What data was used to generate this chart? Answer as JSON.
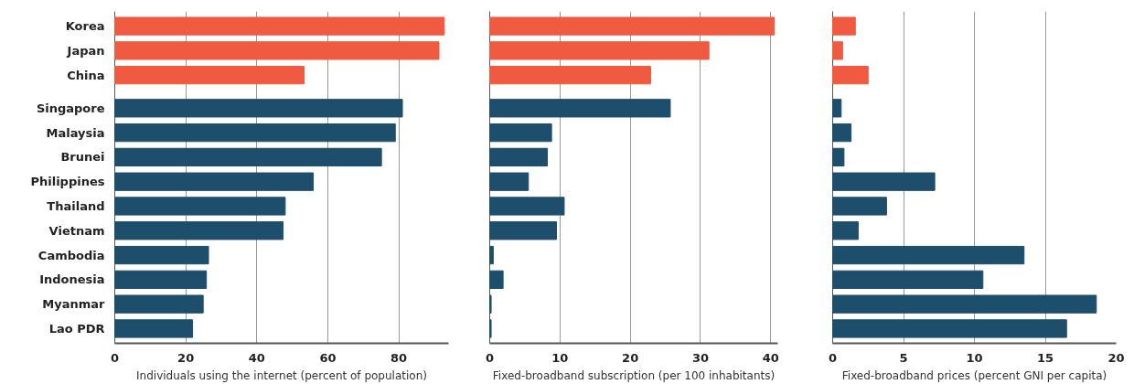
{
  "chart_data": [
    {
      "type": "bar",
      "orientation": "horizontal",
      "categories": [
        "Korea",
        "Japan",
        "China",
        "Singapore",
        "Malaysia",
        "Brunei",
        "Philippines",
        "Thailand",
        "Vietnam",
        "Cambodia",
        "Indonesia",
        "Myanmar",
        "Lao PDR"
      ],
      "values": [
        92.8,
        91.3,
        53.3,
        81,
        79,
        75.1,
        55.9,
        48,
        47.4,
        26.4,
        25.8,
        24.9,
        21.9
      ],
      "colors": [
        "#f05a40",
        "#f05a40",
        "#f05a40",
        "#1d4e6b",
        "#1d4e6b",
        "#1d4e6b",
        "#1d4e6b",
        "#1d4e6b",
        "#1d4e6b",
        "#1d4e6b",
        "#1d4e6b",
        "#1d4e6b",
        "#1d4e6b"
      ],
      "xlabel": "Individuals using the internet (percent of population)",
      "xlim": [
        0,
        94
      ],
      "xticks": [
        0,
        20,
        40,
        60,
        80
      ],
      "grid": "x"
    },
    {
      "type": "bar",
      "orientation": "horizontal",
      "categories": [
        null,
        null,
        null,
        null,
        null,
        null,
        null,
        null,
        null,
        null,
        null,
        null,
        null
      ],
      "values": [
        40.5,
        31.2,
        22.9,
        25.7,
        8.8,
        8.2,
        5.5,
        10.6,
        9.5,
        0.5,
        1.9,
        0.2,
        0.2
      ],
      "colors": [
        "#f05a40",
        "#f05a40",
        "#f05a40",
        "#1d4e6b",
        "#1d4e6b",
        "#1d4e6b",
        "#1d4e6b",
        "#1d4e6b",
        "#1d4e6b",
        "#1d4e6b",
        "#1d4e6b",
        "#1d4e6b",
        "#1d4e6b"
      ],
      "xlabel": "Fixed-broadband subscription (per 100 inhabitants)",
      "xlim": [
        0,
        41
      ],
      "xticks": [
        0,
        10,
        20,
        30,
        40
      ],
      "grid": "x"
    },
    {
      "type": "bar",
      "orientation": "horizontal",
      "categories": [
        null,
        null,
        null,
        null,
        null,
        null,
        null,
        null,
        null,
        null,
        null,
        null,
        null
      ],
      "values": [
        1.6,
        0.7,
        2.5,
        0.6,
        1.3,
        0.8,
        7.2,
        3.8,
        1.8,
        13.5,
        10.6,
        18.6,
        16.5
      ],
      "colors": [
        "#f05a40",
        "#f05a40",
        "#f05a40",
        "#1d4e6b",
        "#1d4e6b",
        "#1d4e6b",
        "#1d4e6b",
        "#1d4e6b",
        "#1d4e6b",
        "#1d4e6b",
        "#1d4e6b",
        "#1d4e6b",
        "#1d4e6b"
      ],
      "xlabel": "Fixed-broadband prices (percent GNI per capita)",
      "xlim": [
        0,
        20
      ],
      "xticks": [
        0,
        5,
        10,
        15,
        20
      ],
      "grid": "x"
    }
  ]
}
